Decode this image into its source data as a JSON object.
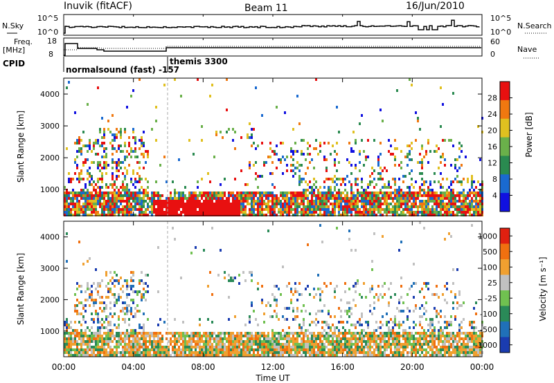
{
  "header": {
    "station": "Inuvik (fitACF)",
    "beam": "Beam 11",
    "date": "16/Jun/2010"
  },
  "top_panels": {
    "nsky_label": "N.Sky",
    "nsearch_label": "N.Search",
    "count_ticks": [
      "10^5",
      "10^0"
    ],
    "freq_label": "Freq.",
    "freq_unit": "[MHz]",
    "freq_ticks": [
      "18",
      "8"
    ],
    "nave_label": "Nave",
    "nave_ticks": [
      "60",
      "0"
    ],
    "cpid_label": "CPID",
    "cpid_mode1": "normalsound (fast) -157",
    "cpid_mode2": "themis 3300"
  },
  "chart_data": [
    {
      "type": "heatmap",
      "title": "",
      "ylabel": "Slant Range [km]",
      "ylim": [
        180,
        4500
      ],
      "yticks": [
        "1000",
        "2000",
        "3000",
        "4000"
      ],
      "colorbar_label": "Power [dB]",
      "colorbar_ticks": [
        "4",
        "8",
        "12",
        "16",
        "20",
        "24",
        "28"
      ],
      "colorbar_colors": [
        "#1010e0",
        "#1a6ad0",
        "#2a8a50",
        "#6ab04a",
        "#e0c020",
        "#f07810",
        "#e81010"
      ]
    },
    {
      "type": "heatmap",
      "title": "",
      "ylabel": "Slant Range [km]",
      "ylim": [
        180,
        4500
      ],
      "yticks": [
        "1000",
        "2000",
        "3000",
        "4000"
      ],
      "colorbar_label": "Velocity [m s⁻¹]",
      "colorbar_ticks": [
        "1000",
        "500",
        "100",
        "25",
        "-25",
        "-100",
        "-500",
        "-1000"
      ],
      "colorbar_colors": [
        "#1a3cb0",
        "#2070b8",
        "#2a8a58",
        "#70c050",
        "#c0c0c0",
        "#f0a030",
        "#f07010",
        "#e02010"
      ]
    }
  ],
  "x_axis": {
    "label": "Time UT",
    "ticks": [
      "00:00",
      "04:00",
      "08:00",
      "12:00",
      "16:00",
      "20:00",
      "00:00"
    ]
  }
}
